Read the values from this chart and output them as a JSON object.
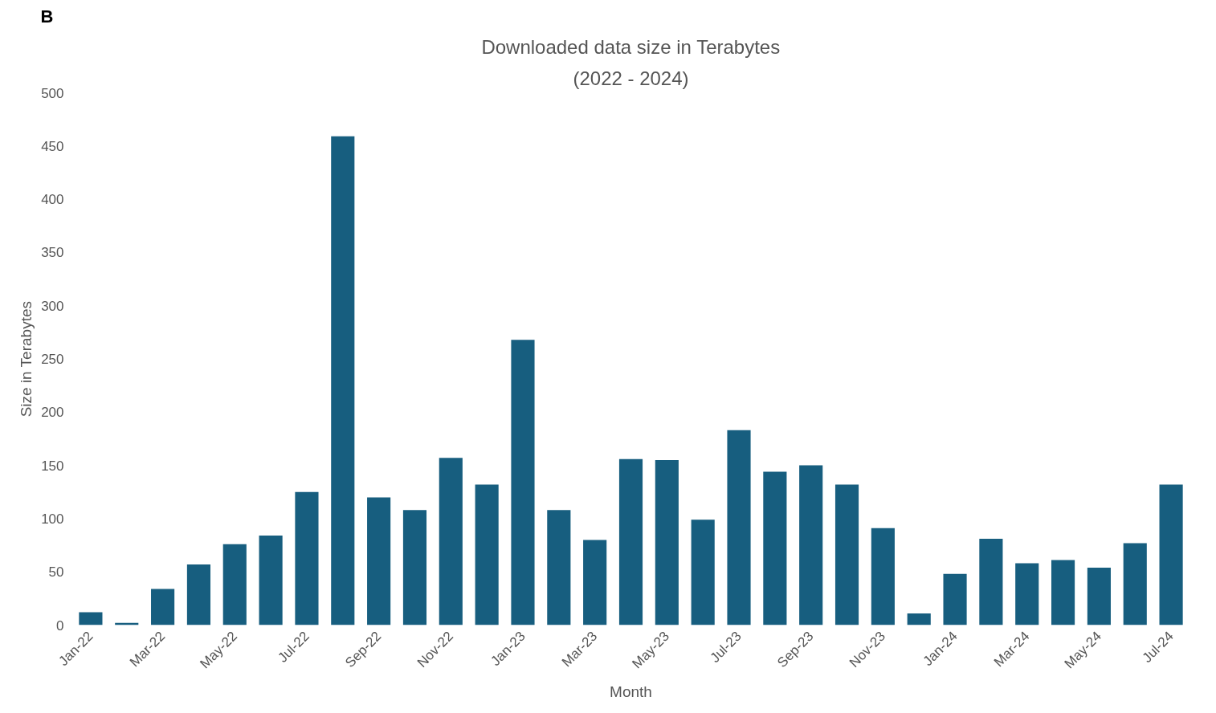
{
  "chart_data": {
    "type": "bar",
    "title": "Downloaded data size in Terabytes",
    "subtitle": "(2022 - 2024)",
    "xlabel": "Month",
    "ylabel": "Size in Terabytes",
    "annotations": [
      "B"
    ],
    "categories": [
      "Jan-22",
      null,
      "Mar-22",
      null,
      "May-22",
      null,
      "Jul-22",
      null,
      "Sep-22",
      null,
      "Nov-22",
      null,
      "Jan-23",
      null,
      "Mar-23",
      null,
      "May-23",
      null,
      "Jul-23",
      null,
      "Sep-23",
      null,
      "Nov-23",
      null,
      "Jan-24",
      null,
      "Mar-24",
      null,
      "May-24",
      null,
      "Jul-24"
    ],
    "values": [
      12,
      2,
      34,
      57,
      76,
      84,
      125,
      459,
      120,
      108,
      157,
      132,
      268,
      108,
      80,
      156,
      155,
      99,
      183,
      144,
      150,
      132,
      91,
      11,
      48,
      81,
      58,
      61,
      54,
      77,
      132
    ],
    "color": "#175e7f",
    "ylim": [
      0,
      500
    ],
    "yticks": [
      0,
      50,
      100,
      150,
      200,
      250,
      300,
      350,
      400,
      450,
      500
    ],
    "grid": false
  }
}
